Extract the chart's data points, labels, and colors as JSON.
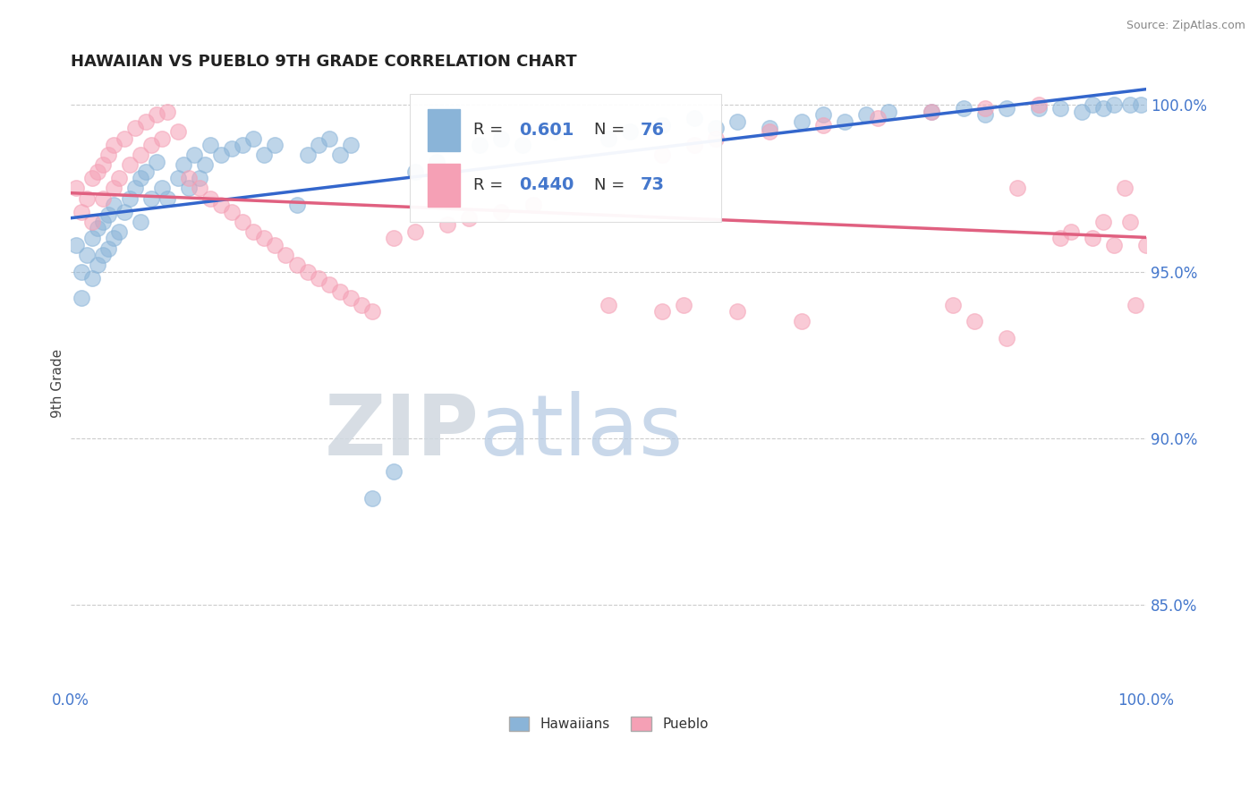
{
  "title": "HAWAIIAN VS PUEBLO 9TH GRADE CORRELATION CHART",
  "source_text": "Source: ZipAtlas.com",
  "ylabel": "9th Grade",
  "watermark_zip": "ZIP",
  "watermark_atlas": "atlas",
  "legend_hawaiians": "Hawaiians",
  "legend_pueblo": "Pueblo",
  "R_hawaiians": 0.601,
  "N_hawaiians": 76,
  "R_pueblo": 0.44,
  "N_pueblo": 73,
  "color_hawaiians": "#8ab4d8",
  "color_pueblo": "#f5a0b5",
  "color_line_hawaiians": "#3366cc",
  "color_line_pueblo": "#e06080",
  "xlim": [
    0.0,
    1.0
  ],
  "ylim": [
    0.825,
    1.008
  ],
  "yticks": [
    0.85,
    0.9,
    0.95,
    1.0
  ],
  "ytick_labels": [
    "85.0%",
    "90.0%",
    "95.0%",
    "100.0%"
  ],
  "background_color": "#ffffff",
  "hawaiians_x": [
    0.005,
    0.01,
    0.01,
    0.015,
    0.02,
    0.02,
    0.025,
    0.025,
    0.03,
    0.03,
    0.035,
    0.035,
    0.04,
    0.04,
    0.045,
    0.05,
    0.055,
    0.06,
    0.065,
    0.065,
    0.07,
    0.075,
    0.08,
    0.085,
    0.09,
    0.1,
    0.105,
    0.11,
    0.115,
    0.12,
    0.125,
    0.13,
    0.14,
    0.15,
    0.16,
    0.17,
    0.18,
    0.19,
    0.21,
    0.22,
    0.23,
    0.24,
    0.25,
    0.26,
    0.28,
    0.3,
    0.32,
    0.34,
    0.38,
    0.4,
    0.42,
    0.45,
    0.5,
    0.52,
    0.55,
    0.58,
    0.6,
    0.62,
    0.65,
    0.68,
    0.7,
    0.72,
    0.74,
    0.76,
    0.8,
    0.83,
    0.85,
    0.87,
    0.9,
    0.92,
    0.94,
    0.95,
    0.96,
    0.97,
    0.985,
    0.995
  ],
  "hawaiians_y": [
    0.958,
    0.95,
    0.942,
    0.955,
    0.96,
    0.948,
    0.963,
    0.952,
    0.965,
    0.955,
    0.967,
    0.957,
    0.97,
    0.96,
    0.962,
    0.968,
    0.972,
    0.975,
    0.978,
    0.965,
    0.98,
    0.972,
    0.983,
    0.975,
    0.972,
    0.978,
    0.982,
    0.975,
    0.985,
    0.978,
    0.982,
    0.988,
    0.985,
    0.987,
    0.988,
    0.99,
    0.985,
    0.988,
    0.97,
    0.985,
    0.988,
    0.99,
    0.985,
    0.988,
    0.882,
    0.89,
    0.98,
    0.983,
    0.988,
    0.99,
    0.988,
    0.992,
    0.99,
    0.992,
    0.994,
    0.996,
    0.993,
    0.995,
    0.993,
    0.995,
    0.997,
    0.995,
    0.997,
    0.998,
    0.998,
    0.999,
    0.997,
    0.999,
    0.999,
    0.999,
    0.998,
    1.0,
    0.999,
    1.0,
    1.0,
    1.0
  ],
  "pueblo_x": [
    0.005,
    0.01,
    0.015,
    0.02,
    0.02,
    0.025,
    0.03,
    0.03,
    0.035,
    0.04,
    0.04,
    0.045,
    0.05,
    0.055,
    0.06,
    0.065,
    0.07,
    0.075,
    0.08,
    0.085,
    0.09,
    0.1,
    0.11,
    0.12,
    0.13,
    0.14,
    0.15,
    0.16,
    0.17,
    0.18,
    0.19,
    0.2,
    0.21,
    0.22,
    0.23,
    0.24,
    0.25,
    0.26,
    0.27,
    0.28,
    0.3,
    0.32,
    0.35,
    0.37,
    0.4,
    0.43,
    0.5,
    0.55,
    0.58,
    0.6,
    0.62,
    0.65,
    0.68,
    0.7,
    0.75,
    0.8,
    0.85,
    0.88,
    0.9,
    0.92,
    0.93,
    0.95,
    0.96,
    0.97,
    0.98,
    0.985,
    0.99,
    1.0,
    0.55,
    0.57,
    0.82,
    0.84,
    0.87
  ],
  "pueblo_y": [
    0.975,
    0.968,
    0.972,
    0.978,
    0.965,
    0.98,
    0.982,
    0.972,
    0.985,
    0.975,
    0.988,
    0.978,
    0.99,
    0.982,
    0.993,
    0.985,
    0.995,
    0.988,
    0.997,
    0.99,
    0.998,
    0.992,
    0.978,
    0.975,
    0.972,
    0.97,
    0.968,
    0.965,
    0.962,
    0.96,
    0.958,
    0.955,
    0.952,
    0.95,
    0.948,
    0.946,
    0.944,
    0.942,
    0.94,
    0.938,
    0.96,
    0.962,
    0.964,
    0.966,
    0.968,
    0.97,
    0.94,
    0.985,
    0.988,
    0.99,
    0.938,
    0.992,
    0.935,
    0.994,
    0.996,
    0.998,
    0.999,
    0.975,
    1.0,
    0.96,
    0.962,
    0.96,
    0.965,
    0.958,
    0.975,
    0.965,
    0.94,
    0.958,
    0.938,
    0.94,
    0.94,
    0.935,
    0.93
  ]
}
